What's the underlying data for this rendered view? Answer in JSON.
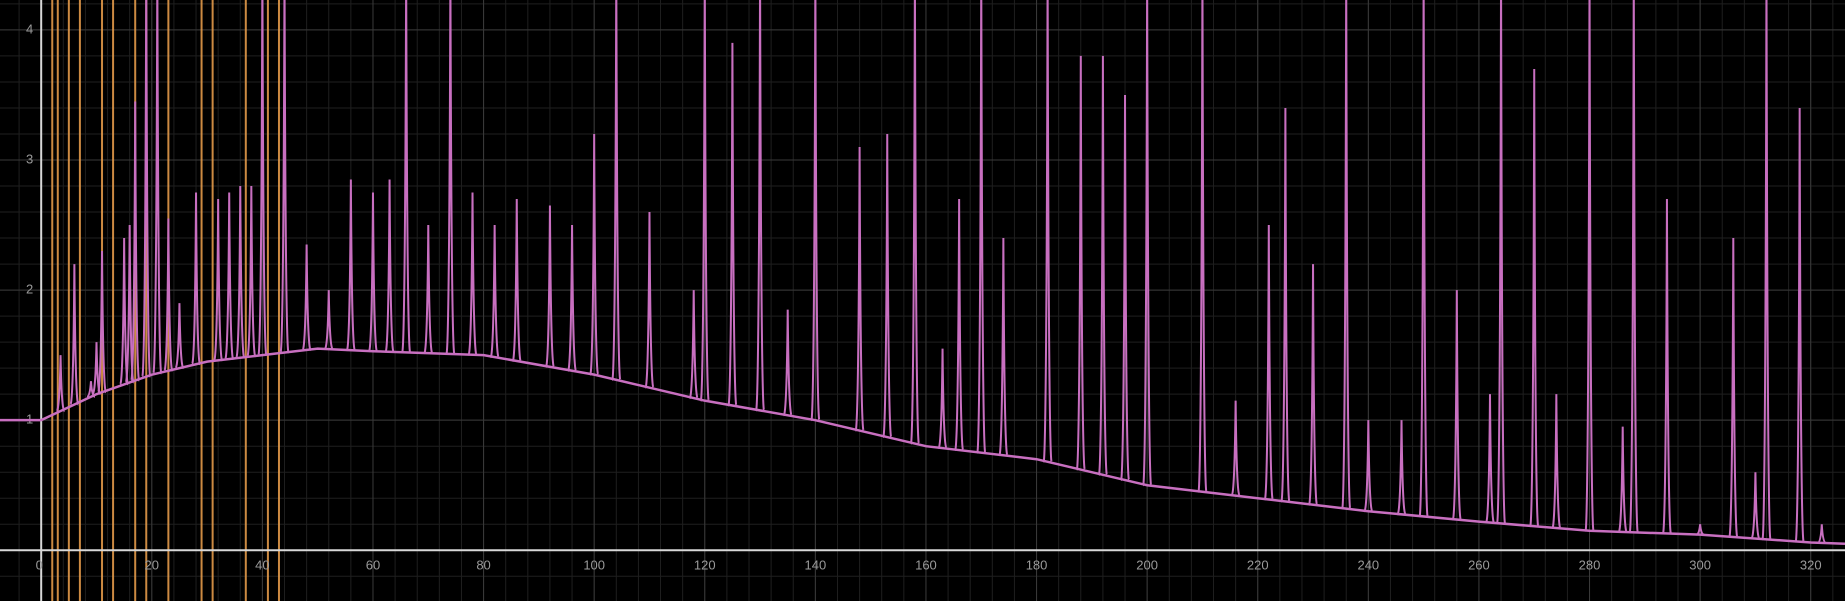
{
  "chart_data": {
    "type": "line",
    "xlim": [
      -7.45,
      326.2
    ],
    "ylim": [
      -0.39,
      4.23
    ],
    "xticks": [
      0,
      20,
      40,
      60,
      80,
      100,
      120,
      140,
      160,
      180,
      200,
      220,
      240,
      260,
      280,
      300,
      320
    ],
    "yticks": [
      1,
      2,
      3,
      4
    ],
    "grid": true,
    "minor_divisions": 5,
    "series": [
      {
        "color": "#c86fc0",
        "x": [
          -7.45,
          0,
          5,
          10,
          20,
          30,
          40,
          50,
          60,
          80,
          100,
          120,
          140,
          160,
          180,
          200,
          220,
          240,
          260,
          280,
          300,
          320,
          326.2
        ],
        "values": [
          1,
          1,
          1.1,
          1.2,
          1.35,
          1.45,
          1.5,
          1.55,
          1.53,
          1.5,
          1.35,
          1.15,
          1.0,
          0.8,
          0.7,
          0.5,
          0.4,
          0.3,
          0.22,
          0.15,
          0.12,
          0.06,
          0.05
        ]
      }
    ],
    "spikes": {
      "color": "#c86fc0",
      "x": [
        3.5,
        6,
        9,
        10,
        11,
        15,
        16,
        17,
        19,
        21,
        23,
        25,
        28,
        32,
        34,
        36,
        38,
        40,
        44,
        48,
        52,
        56,
        60,
        63,
        66,
        70,
        74,
        78,
        82,
        86,
        92,
        96,
        100,
        104,
        110,
        118,
        120,
        125,
        130,
        135,
        140,
        148,
        153,
        158,
        163,
        166,
        170,
        174,
        182,
        188,
        192,
        196,
        200,
        210,
        216,
        222,
        225,
        230,
        236,
        240,
        246,
        250,
        256,
        262,
        264,
        270,
        274,
        280,
        286,
        288,
        294,
        300,
        306,
        310,
        312,
        318,
        322
      ],
      "values": [
        1.5,
        2.2,
        1.3,
        1.6,
        2.3,
        2.4,
        2.5,
        3.45,
        4.5,
        4.5,
        2.55,
        1.9,
        2.75,
        2.7,
        2.75,
        2.8,
        2.8,
        4.5,
        4.5,
        2.35,
        2.0,
        2.85,
        2.75,
        2.85,
        4.5,
        2.5,
        4.5,
        2.75,
        2.5,
        2.7,
        2.65,
        2.5,
        3.2,
        4.5,
        2.6,
        2.0,
        4.5,
        3.9,
        4.5,
        1.85,
        4.5,
        3.1,
        3.2,
        4.5,
        1.55,
        2.7,
        4.5,
        2.4,
        4.5,
        3.8,
        3.8,
        3.5,
        4.5,
        4.5,
        1.15,
        2.5,
        3.4,
        2.2,
        4.5,
        1.0,
        1.0,
        4.5,
        2.0,
        1.2,
        4.5,
        3.7,
        1.2,
        4.5,
        0.95,
        4.5,
        2.7,
        0.2,
        2.4,
        0.6,
        4.5,
        3.4,
        0.2
      ]
    },
    "vlines": {
      "color": "#e39a4a",
      "x": [
        2,
        3,
        5,
        7,
        11,
        13,
        17,
        19,
        23,
        29,
        31,
        37,
        41,
        43
      ]
    }
  }
}
